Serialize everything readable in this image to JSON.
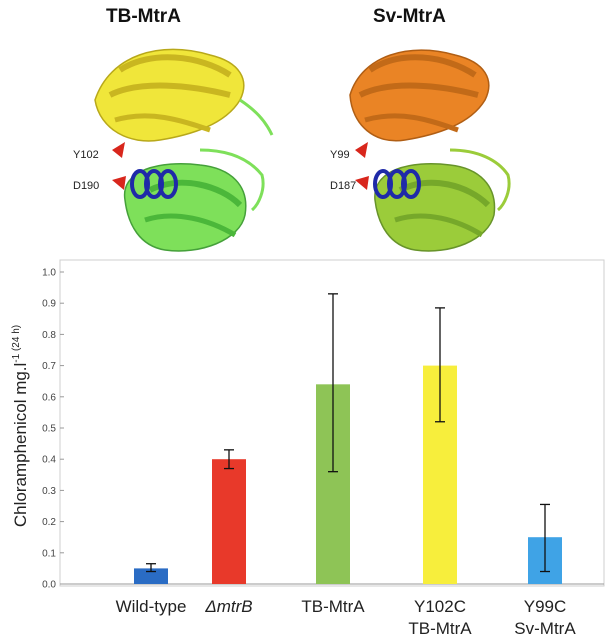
{
  "structures": {
    "left": {
      "title": "TB-MtrA",
      "residue_labels": [
        "Y102",
        "D190"
      ],
      "colors": {
        "top": "#f0e63a",
        "bottom": "#7ee05a",
        "helix": "#1f2aa8",
        "sidechain": "#d8261c"
      }
    },
    "right": {
      "title": "Sv-MtrA",
      "residue_labels": [
        "Y99",
        "D187"
      ],
      "colors": {
        "top": "#ea8425",
        "bottom": "#9bcc3a",
        "helix": "#1f2aa8",
        "sidechain": "#d8261c"
      }
    }
  },
  "chart_data": {
    "type": "bar",
    "categories": [
      {
        "line1": "Wild-type",
        "line2": "",
        "italic": false
      },
      {
        "line1": "ΔmtrB",
        "line2": "",
        "italic": true
      },
      {
        "line1": "TB-MtrA",
        "line2": "",
        "italic": false
      },
      {
        "line1": "Y102C",
        "line2": "TB-MtrA",
        "italic": false
      },
      {
        "line1": "Y99C",
        "line2": "Sv-MtrA",
        "italic": false
      }
    ],
    "values": [
      0.05,
      0.4,
      0.64,
      0.7,
      0.15
    ],
    "error_low": [
      0.04,
      0.37,
      0.36,
      0.52,
      0.04
    ],
    "error_high": [
      0.065,
      0.43,
      0.93,
      0.885,
      0.255
    ],
    "colors": [
      "#2a6cc4",
      "#e8392a",
      "#8ec456",
      "#f7ee3c",
      "#3fa3e6"
    ],
    "ylabel": "Chloramphenicol mg.l",
    "ylabel_sup": "-1 (24 h)",
    "ylim": [
      0,
      1.0
    ],
    "yticks": [
      "0.0",
      "0.1",
      "0.2",
      "0.3",
      "0.4",
      "0.5",
      "0.6",
      "0.7",
      "0.8",
      "0.9",
      "1.0"
    ],
    "grid": false
  }
}
